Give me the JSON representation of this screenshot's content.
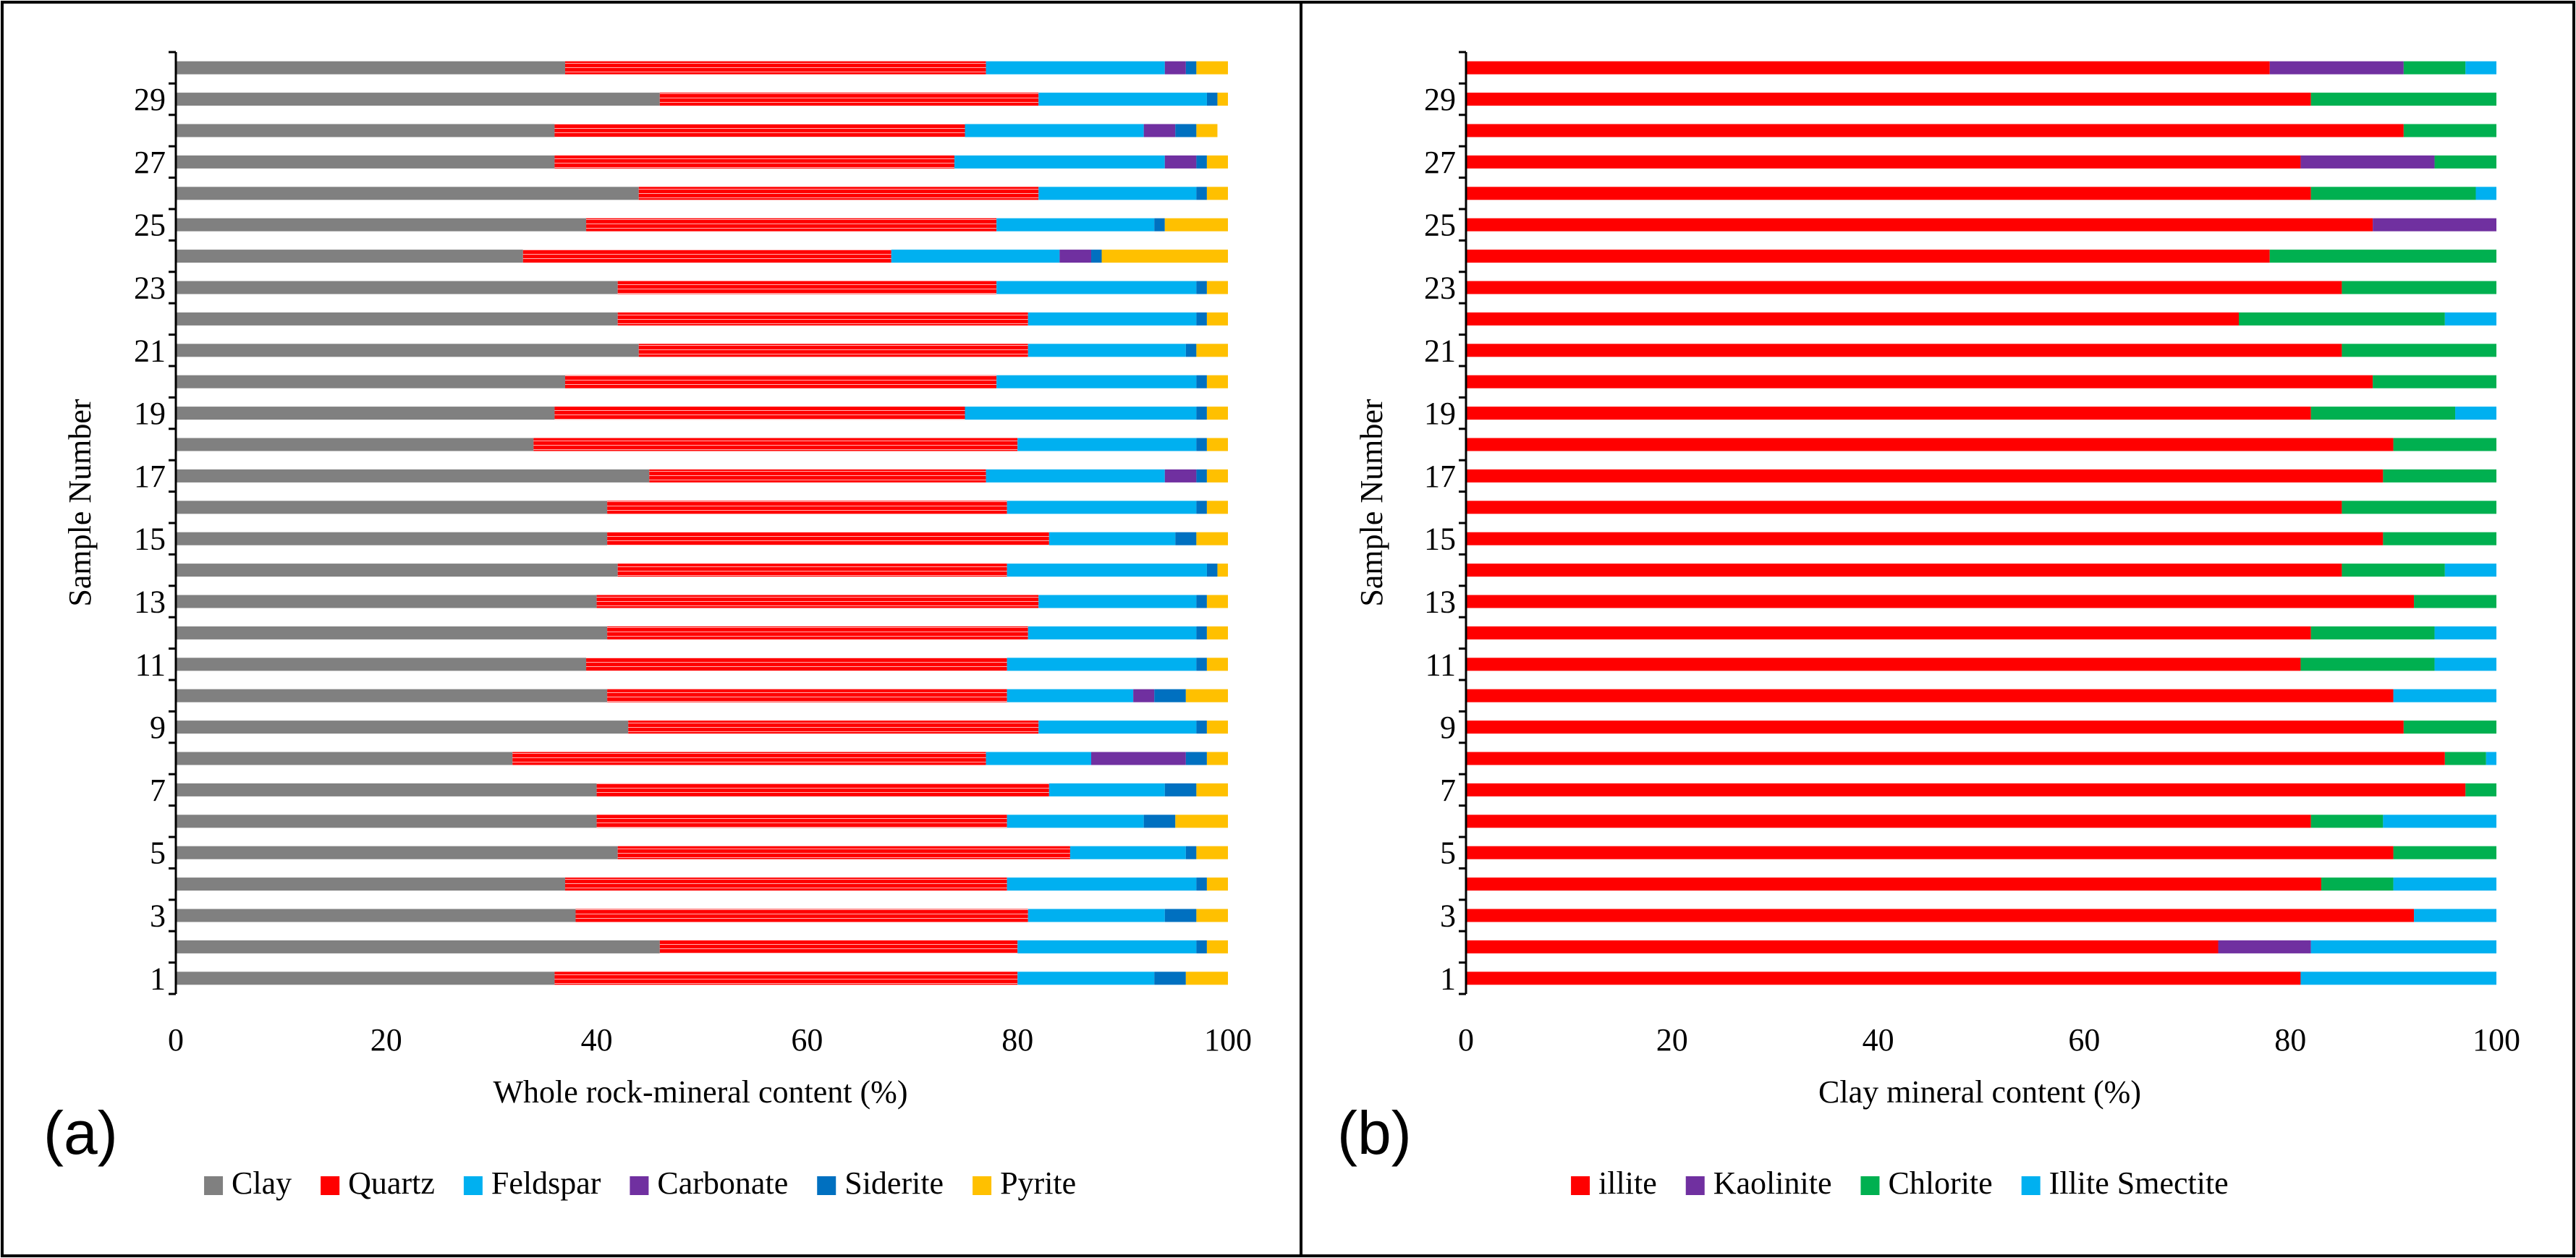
{
  "figure": {
    "panels": [
      {
        "letter": "(a)"
      },
      {
        "letter": "(b)"
      }
    ]
  },
  "chart_data": [
    {
      "type": "bar",
      "orientation": "horizontal",
      "stacked": true,
      "panel": "(a)",
      "xlabel": "Whole rock-mineral content (%)",
      "ylabel": "Sample Number",
      "xlim": [
        0,
        100
      ],
      "x_ticks": [
        "0",
        "20",
        "40",
        "60",
        "80",
        "100"
      ],
      "categories": [
        1,
        2,
        3,
        4,
        5,
        6,
        7,
        8,
        9,
        10,
        11,
        12,
        13,
        14,
        15,
        16,
        17,
        18,
        19,
        20,
        21,
        22,
        23,
        24,
        25,
        26,
        27,
        28,
        29,
        30
      ],
      "y_tick_labels": [
        "1",
        "3",
        "5",
        "7",
        "9",
        "11",
        "13",
        "15",
        "17",
        "19",
        "21",
        "23",
        "25",
        "27",
        "29"
      ],
      "grid": false,
      "legend_position": "bottom",
      "series": [
        {
          "name": "Clay",
          "color": "#808080",
          "values": [
            36,
            46,
            38,
            37,
            42,
            40,
            40,
            32,
            43,
            41,
            39,
            41,
            40,
            42,
            41,
            41,
            45,
            34,
            36,
            37,
            44,
            42,
            42,
            33,
            39,
            44,
            36,
            36,
            46,
            37
          ]
        },
        {
          "name": "Quartz",
          "color": "#ff0000",
          "values": [
            44,
            34,
            43,
            42,
            43,
            39,
            43,
            45,
            39,
            38,
            40,
            40,
            42,
            37,
            42,
            38,
            32,
            46,
            39,
            41,
            37,
            39,
            36,
            35,
            39,
            38,
            38,
            39,
            36,
            40
          ]
        },
        {
          "name": "Feldspar",
          "color": "#00b0f0",
          "values": [
            13,
            17,
            13,
            18,
            11,
            13,
            11,
            10,
            15,
            12,
            18,
            16,
            15,
            19,
            12,
            18,
            17,
            17,
            22,
            19,
            15,
            16,
            19,
            16,
            15,
            15,
            20,
            17,
            16,
            17
          ]
        },
        {
          "name": "Carbonate",
          "color": "#7030a0",
          "values": [
            0,
            0,
            0,
            0,
            0,
            0,
            0,
            9,
            0,
            2,
            0,
            0,
            0,
            0,
            0,
            0,
            3,
            0,
            0,
            0,
            0,
            0,
            0,
            3,
            0,
            0,
            3,
            3,
            0,
            2
          ]
        },
        {
          "name": "Siderite",
          "color": "#0070c0",
          "values": [
            3,
            1,
            3,
            1,
            1,
            3,
            3,
            2,
            1,
            3,
            1,
            1,
            1,
            1,
            2,
            1,
            1,
            1,
            1,
            1,
            1,
            1,
            1,
            1,
            1,
            1,
            1,
            2,
            1,
            1
          ]
        },
        {
          "name": "Pyrite",
          "color": "#ffc000",
          "values": [
            4,
            2,
            3,
            2,
            3,
            5,
            3,
            2,
            2,
            4,
            2,
            2,
            2,
            1,
            3,
            2,
            2,
            2,
            2,
            2,
            3,
            2,
            2,
            12,
            6,
            2,
            2,
            2,
            1,
            3
          ]
        }
      ]
    },
    {
      "type": "bar",
      "orientation": "horizontal",
      "stacked": true,
      "panel": "(b)",
      "xlabel": "Clay mineral content (%)",
      "ylabel": "Sample Number",
      "xlim": [
        0,
        100
      ],
      "x_ticks": [
        "0",
        "20",
        "40",
        "60",
        "80",
        "100"
      ],
      "categories": [
        1,
        2,
        3,
        4,
        5,
        6,
        7,
        8,
        9,
        10,
        11,
        12,
        13,
        14,
        15,
        16,
        17,
        18,
        19,
        20,
        21,
        22,
        23,
        24,
        25,
        26,
        27,
        28,
        29,
        30
      ],
      "y_tick_labels": [
        "1",
        "3",
        "5",
        "7",
        "9",
        "11",
        "13",
        "15",
        "17",
        "19",
        "21",
        "23",
        "25",
        "27",
        "29"
      ],
      "grid": false,
      "legend_position": "bottom",
      "series": [
        {
          "name": "illite",
          "color": "#ff0000",
          "values": [
            81,
            73,
            92,
            83,
            90,
            82,
            97,
            95,
            91,
            90,
            81,
            82,
            92,
            85,
            89,
            85,
            89,
            90,
            82,
            88,
            85,
            75,
            85,
            78,
            88,
            82,
            81,
            91,
            82,
            78
          ]
        },
        {
          "name": "Kaolinite",
          "color": "#7030a0",
          "values": [
            0,
            9,
            0,
            0,
            0,
            0,
            0,
            0,
            0,
            0,
            0,
            0,
            0,
            0,
            0,
            0,
            0,
            0,
            0,
            0,
            0,
            0,
            0,
            0,
            12,
            0,
            13,
            0,
            0,
            13
          ]
        },
        {
          "name": "Chlorite",
          "color": "#00b050",
          "values": [
            0,
            0,
            0,
            7,
            10,
            7,
            3,
            4,
            9,
            0,
            13,
            12,
            8,
            10,
            11,
            15,
            11,
            10,
            14,
            12,
            15,
            20,
            15,
            22,
            0,
            16,
            6,
            9,
            18,
            6
          ]
        },
        {
          "name": "Illite Smectite",
          "color": "#00b0f0",
          "values": [
            19,
            18,
            8,
            10,
            0,
            11,
            0,
            1,
            0,
            10,
            6,
            6,
            0,
            5,
            0,
            0,
            0,
            0,
            4,
            0,
            0,
            5,
            0,
            0,
            0,
            2,
            0,
            0,
            0,
            3
          ]
        }
      ]
    }
  ]
}
